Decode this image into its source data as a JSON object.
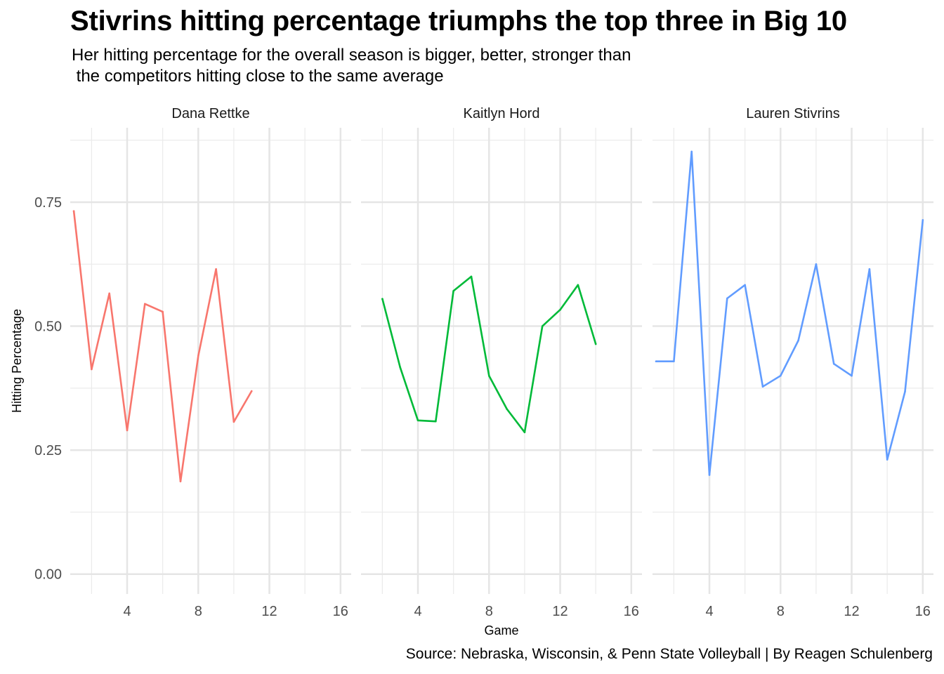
{
  "title": "Stivrins hitting percentage triumphs the top three in Big 10",
  "subtitle": "Her hitting percentage for the overall season is bigger, better, stronger than\n the competitors hitting close to the same average",
  "caption": "Source: Nebraska, Wisconsin, & Penn State Volleyball | By Reagen Schulenberg",
  "chart_data": {
    "type": "line",
    "xlabel": "Game",
    "ylabel": "Hitting Percentage",
    "xlim": [
      0.8,
      16.6
    ],
    "ylim": [
      -0.04,
      0.9
    ],
    "x_ticks": [
      4,
      8,
      12,
      16
    ],
    "x_tick_labels": [
      "4",
      "8",
      "12",
      "16"
    ],
    "x_minor_ticks": [
      2,
      6,
      10,
      14
    ],
    "y_ticks": [
      0,
      0.25,
      0.5,
      0.75
    ],
    "y_tick_labels": [
      "0.00",
      "0.25",
      "0.50",
      "0.75"
    ],
    "y_minor_ticks": [
      0.125,
      0.375,
      0.625,
      0.875
    ],
    "grid": true,
    "legend": "none",
    "series": [
      {
        "name": "Dana Rettke",
        "color": "#F8766D",
        "x": [
          1,
          2,
          3,
          4,
          5,
          6,
          7,
          8,
          9,
          10,
          11
        ],
        "values": [
          0.732,
          0.413,
          0.566,
          0.29,
          0.545,
          0.529,
          0.187,
          0.44,
          0.615,
          0.307,
          0.369
        ]
      },
      {
        "name": "Kaitlyn Hord",
        "color": "#00BA38",
        "x": [
          2,
          3,
          4,
          5,
          6,
          7,
          8,
          9,
          10,
          11,
          12,
          13,
          14
        ],
        "values": [
          0.555,
          0.417,
          0.31,
          0.308,
          0.571,
          0.6,
          0.4,
          0.333,
          0.286,
          0.5,
          0.533,
          0.583,
          0.464
        ]
      },
      {
        "name": "Lauren Stivrins",
        "color": "#619CFF",
        "x": [
          1,
          2,
          3,
          4,
          5,
          6,
          7,
          8,
          9,
          10,
          11,
          12,
          13,
          14,
          15,
          16
        ],
        "values": [
          0.429,
          0.429,
          0.852,
          0.2,
          0.556,
          0.583,
          0.378,
          0.4,
          0.471,
          0.625,
          0.424,
          0.4,
          0.615,
          0.231,
          0.368,
          0.714
        ]
      }
    ]
  }
}
